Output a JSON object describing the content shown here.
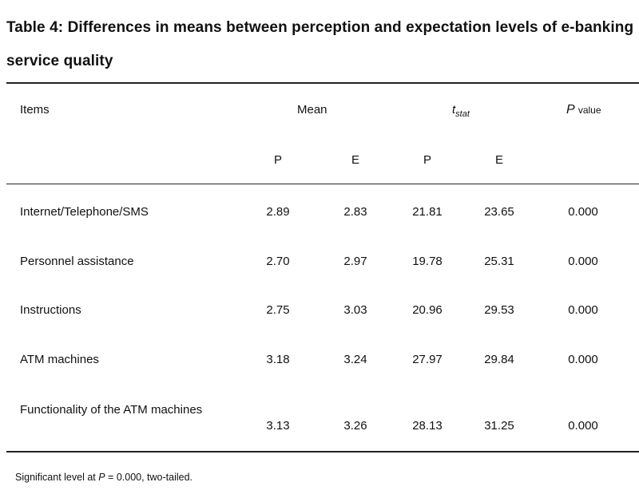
{
  "table": {
    "title": "Table 4: Differences in means between perception and expectation levels of e-banking service quality",
    "headers": {
      "items": "Items",
      "mean": "Mean",
      "tstat_main": "t",
      "tstat_sub": "stat",
      "pvalue_p": "P",
      "pvalue_word": "value"
    },
    "subheaders": [
      "P",
      "E",
      "P",
      "E"
    ],
    "rows": [
      {
        "item": "Internet/Telephone/SMS",
        "mean_p": "2.89",
        "mean_e": "2.83",
        "t_p": "21.81",
        "t_e": "23.65",
        "p": "0.000"
      },
      {
        "item": "Personnel assistance",
        "mean_p": "2.70",
        "mean_e": "2.97",
        "t_p": "19.78",
        "t_e": "25.31",
        "p": "0.000"
      },
      {
        "item": "Instructions",
        "mean_p": "2.75",
        "mean_e": "3.03",
        "t_p": "20.96",
        "t_e": "29.53",
        "p": "0.000"
      },
      {
        "item": "ATM machines",
        "mean_p": "3.18",
        "mean_e": "3.24",
        "t_p": "27.97",
        "t_e": "29.84",
        "p": "0.000"
      },
      {
        "item": "Functionality of the ATM machines",
        "mean_p": "3.13",
        "mean_e": "3.26",
        "t_p": "28.13",
        "t_e": "31.25",
        "p": "0.000"
      }
    ],
    "note_prefix": "Significant level at ",
    "note_p": "P",
    "note_suffix": " = 0.000, two-tailed."
  }
}
